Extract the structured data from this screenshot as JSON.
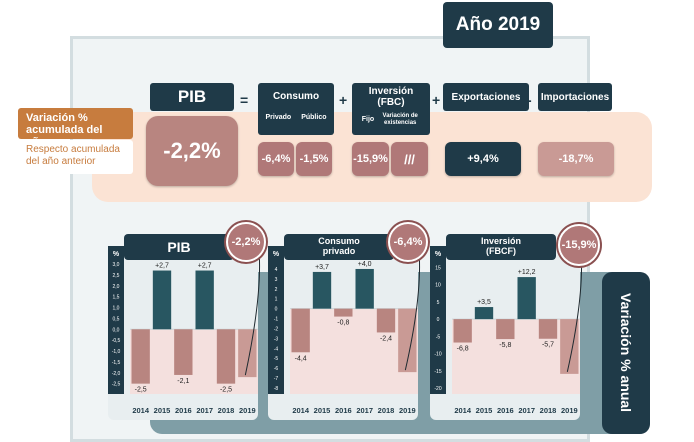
{
  "top_strip": "",
  "year_label": "Año 2019",
  "left_labels": {
    "accum": "Variación % acumulada del año",
    "respect": "Respecto acumulada del año anterior"
  },
  "headers": {
    "pib": "PIB",
    "consumo": "Consumo",
    "consumo_sub": [
      "Privado",
      "Público"
    ],
    "inversion": "Inversión (FBC)",
    "inversion_sub": [
      "Fijo",
      "Variación de existencias"
    ],
    "exportaciones": "Exportaciones",
    "importaciones": "Importaciones"
  },
  "operators": [
    "=",
    "+",
    "+",
    "-"
  ],
  "values": {
    "pib": "-2,2%",
    "privado": "-6,4%",
    "publico": "-1,5%",
    "fijo": "-15,9%",
    "existencias": "///",
    "exportaciones": "+9,4%",
    "importaciones": "-18,7%"
  },
  "side_label": "Variación % anual",
  "colors": {
    "dark": "#1f3a48",
    "rose": "#b07878",
    "orange": "#c77c3e",
    "pink_band": "#fbe3d4"
  },
  "chart_data": [
    {
      "type": "bar",
      "title": "PIB",
      "ylabel": "%",
      "highlight": "-2,2%",
      "categories": [
        "2014",
        "2015",
        "2016",
        "2017",
        "2018",
        "2019"
      ],
      "values": [
        -2.5,
        2.7,
        -2.1,
        2.7,
        -2.5,
        -2.2
      ],
      "labels": [
        "-2,5",
        "+2,7",
        "-2,1",
        "+2,7",
        "-2,5",
        ""
      ],
      "yticks": [
        "3,0",
        "2,5",
        "2,0",
        "1,5",
        "1,0",
        "0,5",
        "0,0",
        "-0,5",
        "-1,0",
        "-1,5",
        "-2,0",
        "-2,5"
      ],
      "ylim": [
        -2.7,
        3.0
      ]
    },
    {
      "type": "bar",
      "title": "Consumo privado",
      "ylabel": "%",
      "highlight": "-6,4%",
      "categories": [
        "2014",
        "2015",
        "2016",
        "2017",
        "2018",
        "2019"
      ],
      "values": [
        -4.4,
        3.7,
        -0.8,
        4.0,
        -2.4,
        -6.4
      ],
      "labels": [
        "-4,4",
        "+3,7",
        "-0,8",
        "+4,0",
        "-2,4",
        ""
      ],
      "yticks": [
        "4",
        "3",
        "2",
        "1",
        "0",
        "-1",
        "-2",
        "-3",
        "-4",
        "-5",
        "-6",
        "-7",
        "-8"
      ],
      "ylim": [
        -8,
        4.5
      ]
    },
    {
      "type": "bar",
      "title": "Inversión (FBCF)",
      "ylabel": "%",
      "highlight": "-15,9%",
      "categories": [
        "2014",
        "2015",
        "2016",
        "2017",
        "2018",
        "2019"
      ],
      "values": [
        -6.8,
        3.5,
        -5.8,
        12.2,
        -5.7,
        -15.9
      ],
      "labels": [
        "-6,8",
        "+3,5",
        "-5,8",
        "+12,2",
        "-5,7",
        ""
      ],
      "yticks": [
        "15",
        "10",
        "5",
        "0",
        "-5",
        "-10",
        "-15",
        "-20"
      ],
      "ylim": [
        -20,
        16
      ]
    }
  ]
}
